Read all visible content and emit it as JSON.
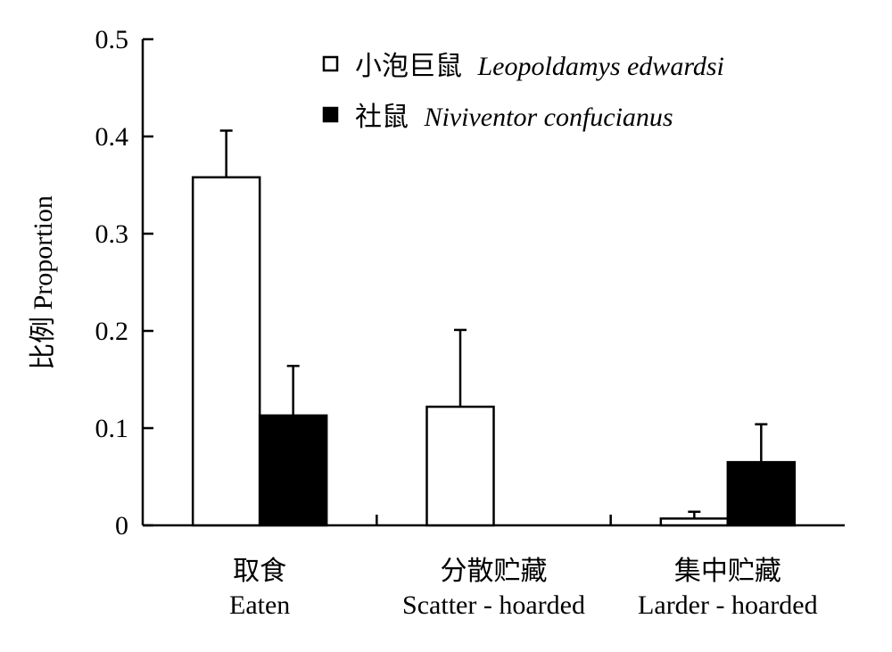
{
  "chart_data": {
    "type": "bar",
    "ylabel": "比例 Proportion",
    "ylim": [
      0,
      0.5
    ],
    "yticks": [
      "0",
      "0.1",
      "0.2",
      "0.3",
      "0.4",
      "0.5"
    ],
    "categories": [
      {
        "zh": "取食",
        "en": "Eaten"
      },
      {
        "zh": "分散贮藏",
        "en": "Scatter - hoarded"
      },
      {
        "zh": "集中贮藏",
        "en": "Larder - hoarded"
      }
    ],
    "series": [
      {
        "name_zh": "小泡巨鼠",
        "name_latin": "Leopoldamys edwardsi",
        "fill": "#ffffff",
        "values": [
          0.358,
          0.122,
          0.007
        ],
        "errors": [
          0.048,
          0.079,
          0.007
        ]
      },
      {
        "name_zh": "社鼠",
        "name_latin": "Niviventor confucianus",
        "fill": "#000000",
        "values": [
          0.113,
          0.0,
          0.065
        ],
        "errors": [
          0.051,
          0.0,
          0.039
        ]
      }
    ],
    "legend_position": "top-right",
    "grid": false
  }
}
